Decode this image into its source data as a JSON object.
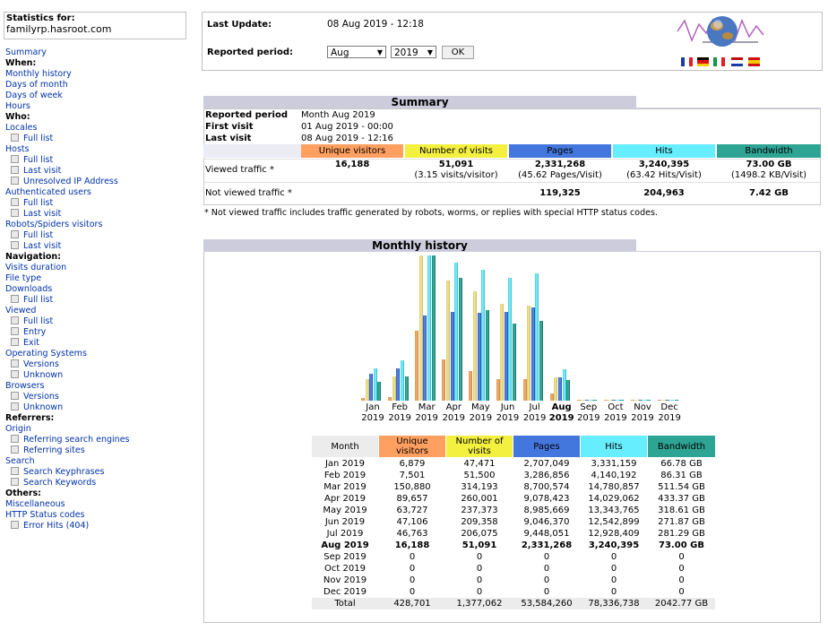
{
  "menu": {
    "stats_for_label": "Statistics for:",
    "site": "familyrp.hasroot.com",
    "items": [
      {
        "type": "link",
        "label": "Summary"
      },
      {
        "type": "head",
        "label": "When:"
      },
      {
        "type": "link",
        "label": "Monthly history"
      },
      {
        "type": "link",
        "label": "Days of month"
      },
      {
        "type": "link",
        "label": "Days of week"
      },
      {
        "type": "link",
        "label": "Hours"
      },
      {
        "type": "head",
        "label": "Who:"
      },
      {
        "type": "link",
        "label": "Locales"
      },
      {
        "type": "sub",
        "label": "Full list"
      },
      {
        "type": "link",
        "label": "Hosts"
      },
      {
        "type": "sub",
        "label": "Full list"
      },
      {
        "type": "sub",
        "label": "Last visit"
      },
      {
        "type": "sub",
        "label": "Unresolved IP Address"
      },
      {
        "type": "link",
        "label": "Authenticated users"
      },
      {
        "type": "sub",
        "label": "Full list"
      },
      {
        "type": "sub",
        "label": "Last visit"
      },
      {
        "type": "link",
        "label": "Robots/Spiders visitors"
      },
      {
        "type": "sub",
        "label": "Full list"
      },
      {
        "type": "sub",
        "label": "Last visit"
      },
      {
        "type": "head",
        "label": "Navigation:"
      },
      {
        "type": "link",
        "label": "Visits duration"
      },
      {
        "type": "link",
        "label": "File type"
      },
      {
        "type": "link",
        "label": "Downloads"
      },
      {
        "type": "sub",
        "label": "Full list"
      },
      {
        "type": "link",
        "label": "Viewed"
      },
      {
        "type": "sub",
        "label": "Full list"
      },
      {
        "type": "sub",
        "label": "Entry"
      },
      {
        "type": "sub",
        "label": "Exit"
      },
      {
        "type": "link",
        "label": "Operating Systems"
      },
      {
        "type": "sub",
        "label": "Versions"
      },
      {
        "type": "sub",
        "label": "Unknown"
      },
      {
        "type": "link",
        "label": "Browsers"
      },
      {
        "type": "sub",
        "label": "Versions"
      },
      {
        "type": "sub",
        "label": "Unknown"
      },
      {
        "type": "head",
        "label": "Referrers:"
      },
      {
        "type": "link",
        "label": "Origin"
      },
      {
        "type": "sub",
        "label": "Referring search engines"
      },
      {
        "type": "sub",
        "label": "Referring sites"
      },
      {
        "type": "link",
        "label": "Search"
      },
      {
        "type": "sub",
        "label": "Search Keyphrases"
      },
      {
        "type": "sub",
        "label": "Search Keywords"
      },
      {
        "type": "head",
        "label": "Others:"
      },
      {
        "type": "link",
        "label": "Miscellaneous"
      },
      {
        "type": "link",
        "label": "HTTP Status codes"
      },
      {
        "type": "sub",
        "label": "Error Hits (404)"
      }
    ]
  },
  "top": {
    "last_update_label": "Last Update:",
    "last_update_value": "08 Aug 2019 - 12:18",
    "reported_period_label": "Reported period:",
    "month_select": "Aug",
    "year_select": "2019",
    "ok_label": "OK",
    "flag_icons": [
      "flag-fr-icon",
      "flag-de-icon",
      "flag-it-icon",
      "flag-nl-icon",
      "flag-es-icon"
    ]
  },
  "summary": {
    "title": "Summary",
    "reported_period_label": "Reported period",
    "reported_period_value": "Month Aug 2019",
    "first_visit_label": "First visit",
    "first_visit_value": "01 Aug 2019 - 00:00",
    "last_visit_label": "Last visit",
    "last_visit_value": "08 Aug 2019 - 12:16",
    "headers": {
      "unique": "Unique visitors",
      "visits": "Number of visits",
      "pages": "Pages",
      "hits": "Hits",
      "bandwidth": "Bandwidth"
    },
    "viewed_label": "Viewed traffic *",
    "viewed": {
      "unique": "16,188",
      "visits": "51,091",
      "visits_sub": "(3.15 visits/visitor)",
      "pages": "2,331,268",
      "pages_sub": "(45.62 Pages/Visit)",
      "hits": "3,240,395",
      "hits_sub": "(63.42 Hits/Visit)",
      "bandwidth": "73.00 GB",
      "bandwidth_sub": "(1498.2 KB/Visit)"
    },
    "not_viewed_label": "Not viewed traffic *",
    "not_viewed": {
      "pages": "119,325",
      "hits": "204,963",
      "bandwidth": "7.42 GB"
    },
    "footnote": "* Not viewed traffic includes traffic generated by robots, worms, or replies with special HTTP status codes."
  },
  "monthly": {
    "title": "Monthly history",
    "colors": {
      "unique": "#ffa060",
      "visits": "#f4f040",
      "pages": "#4477dd",
      "hits": "#66eeff",
      "bandwidth": "#2ea495"
    },
    "table_headers": {
      "month": "Month",
      "unique": "Unique visitors",
      "visits": "Number of visits",
      "pages": "Pages",
      "hits": "Hits",
      "bandwidth": "Bandwidth"
    },
    "months": [
      {
        "mon": "Jan",
        "year": "2019",
        "label": "Jan 2019",
        "unique": "6,879",
        "visits": "47,471",
        "pages": "2,707,049",
        "hits": "3,331,159",
        "bw": "66.78 GB",
        "bold": false
      },
      {
        "mon": "Feb",
        "year": "2019",
        "label": "Feb 2019",
        "unique": "7,501",
        "visits": "51,500",
        "pages": "3,286,856",
        "hits": "4,140,192",
        "bw": "86.31 GB",
        "bold": false
      },
      {
        "mon": "Mar",
        "year": "2019",
        "label": "Mar 2019",
        "unique": "150,880",
        "visits": "314,193",
        "pages": "8,700,574",
        "hits": "14,780,857",
        "bw": "511.54 GB",
        "bold": false
      },
      {
        "mon": "Apr",
        "year": "2019",
        "label": "Apr 2019",
        "unique": "89,657",
        "visits": "260,001",
        "pages": "9,078,423",
        "hits": "14,029,062",
        "bw": "433.37 GB",
        "bold": false
      },
      {
        "mon": "May",
        "year": "2019",
        "label": "May 2019",
        "unique": "63,727",
        "visits": "237,373",
        "pages": "8,985,669",
        "hits": "13,343,765",
        "bw": "318.61 GB",
        "bold": false
      },
      {
        "mon": "Jun",
        "year": "2019",
        "label": "Jun 2019",
        "unique": "47,106",
        "visits": "209,358",
        "pages": "9,046,370",
        "hits": "12,542,899",
        "bw": "271.87 GB",
        "bold": false
      },
      {
        "mon": "Jul",
        "year": "2019",
        "label": "Jul 2019",
        "unique": "46,763",
        "visits": "206,075",
        "pages": "9,448,051",
        "hits": "12,928,409",
        "bw": "281.29 GB",
        "bold": false
      },
      {
        "mon": "Aug",
        "year": "2019",
        "label": "Aug 2019",
        "unique": "16,188",
        "visits": "51,091",
        "pages": "2,331,268",
        "hits": "3,240,395",
        "bw": "73.00 GB",
        "bold": true
      },
      {
        "mon": "Sep",
        "year": "2019",
        "label": "Sep 2019",
        "unique": "0",
        "visits": "0",
        "pages": "0",
        "hits": "0",
        "bw": "0",
        "bold": false
      },
      {
        "mon": "Oct",
        "year": "2019",
        "label": "Oct 2019",
        "unique": "0",
        "visits": "0",
        "pages": "0",
        "hits": "0",
        "bw": "0",
        "bold": false
      },
      {
        "mon": "Nov",
        "year": "2019",
        "label": "Nov 2019",
        "unique": "0",
        "visits": "0",
        "pages": "0",
        "hits": "0",
        "bw": "0",
        "bold": false
      },
      {
        "mon": "Dec",
        "year": "2019",
        "label": "Dec 2019",
        "unique": "0",
        "visits": "0",
        "pages": "0",
        "hits": "0",
        "bw": "0",
        "bold": false
      }
    ],
    "total": {
      "label": "Total",
      "unique": "428,701",
      "visits": "1,377,062",
      "pages": "53,584,260",
      "hits": "78,336,738",
      "bw": "2042.77 GB"
    }
  },
  "chart_data": {
    "type": "bar",
    "categories": [
      "Jan 2019",
      "Feb 2019",
      "Mar 2019",
      "Apr 2019",
      "May 2019",
      "Jun 2019",
      "Jul 2019",
      "Aug 2019",
      "Sep 2019",
      "Oct 2019",
      "Nov 2019",
      "Dec 2019"
    ],
    "series": [
      {
        "name": "Unique visitors",
        "values": [
          6879,
          7501,
          150880,
          89657,
          63727,
          47106,
          46763,
          16188,
          0,
          0,
          0,
          0
        ]
      },
      {
        "name": "Number of visits",
        "values": [
          47471,
          51500,
          314193,
          260001,
          237373,
          209358,
          206075,
          51091,
          0,
          0,
          0,
          0
        ]
      },
      {
        "name": "Pages",
        "values": [
          2707049,
          3286856,
          8700574,
          9078423,
          8985669,
          9046370,
          9448051,
          2331268,
          0,
          0,
          0,
          0
        ]
      },
      {
        "name": "Hits",
        "values": [
          3331159,
          4140192,
          14780857,
          14029062,
          13343765,
          12542899,
          12928409,
          3240395,
          0,
          0,
          0,
          0
        ]
      },
      {
        "name": "Bandwidth",
        "values": [
          66.78,
          86.31,
          511.54,
          433.37,
          318.61,
          271.87,
          281.29,
          73.0,
          0,
          0,
          0,
          0
        ]
      }
    ],
    "legend": "none",
    "grid": false
  }
}
